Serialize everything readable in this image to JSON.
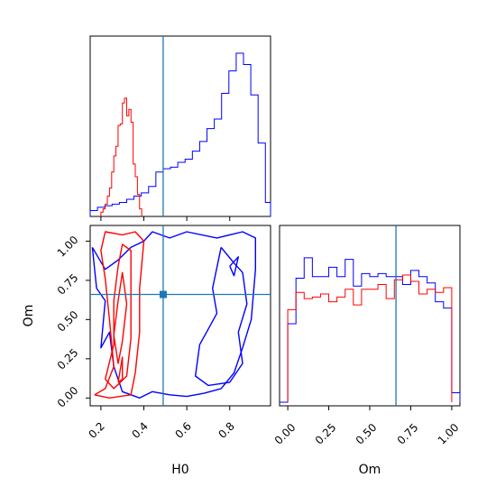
{
  "colors": {
    "series_a": "#0000ff",
    "series_b": "#ff0000",
    "truth": "#1f77b4",
    "frame": "#000000"
  },
  "chart_data": [
    {
      "type": "histogram",
      "panel": "H0 marginal",
      "xlim": [
        0.15,
        0.99
      ],
      "x_tick_labels": [
        "0.2",
        "0.4",
        "0.6",
        "0.8"
      ],
      "truth_x": 0.49,
      "series": [
        {
          "color": "#0000ff",
          "bin_edges": [
            0.15,
            0.184,
            0.218,
            0.252,
            0.286,
            0.32,
            0.354,
            0.388,
            0.422,
            0.456,
            0.49,
            0.524,
            0.558,
            0.592,
            0.626,
            0.66,
            0.694,
            0.728,
            0.762,
            0.796,
            0.83,
            0.864,
            0.898,
            0.932,
            0.966,
            0.99
          ],
          "counts": [
            0.02,
            0.04,
            0.05,
            0.06,
            0.07,
            0.09,
            0.11,
            0.13,
            0.17,
            0.26,
            0.28,
            0.29,
            0.32,
            0.34,
            0.39,
            0.45,
            0.53,
            0.59,
            0.75,
            0.89,
            1.0,
            0.93,
            0.74,
            0.44,
            0.07
          ]
        },
        {
          "color": "#ff0000",
          "bin_edges": [
            0.2,
            0.21,
            0.22,
            0.23,
            0.24,
            0.25,
            0.26,
            0.27,
            0.28,
            0.29,
            0.3,
            0.31,
            0.32,
            0.33,
            0.34,
            0.35,
            0.36,
            0.37,
            0.38,
            0.39
          ],
          "counts": [
            0.01,
            0.03,
            0.06,
            0.11,
            0.16,
            0.26,
            0.36,
            0.42,
            0.55,
            0.56,
            0.69,
            0.72,
            0.61,
            0.65,
            0.57,
            0.31,
            0.23,
            0.12,
            0.03
          ]
        }
      ]
    },
    {
      "type": "histogram",
      "panel": "Om marginal",
      "xlim": [
        -0.05,
        1.05
      ],
      "x_tick_labels": [
        "0.00",
        "0.25",
        "0.50",
        "0.75",
        "1.00"
      ],
      "xlabel": "Om",
      "truth_x": 0.66,
      "series": [
        {
          "color": "#0000ff",
          "bin_edges": [
            -0.05,
            0.0,
            0.05,
            0.1,
            0.15,
            0.2,
            0.25,
            0.3,
            0.35,
            0.4,
            0.45,
            0.5,
            0.55,
            0.6,
            0.65,
            0.7,
            0.75,
            0.8,
            0.85,
            0.9,
            0.95,
            1.0,
            1.05
          ],
          "counts": [
            0.0,
            0.5,
            0.79,
            0.92,
            0.8,
            0.8,
            0.86,
            0.8,
            0.91,
            0.74,
            0.82,
            0.8,
            0.82,
            0.8,
            0.8,
            0.75,
            0.84,
            0.8,
            0.76,
            0.64,
            0.6,
            0.06
          ]
        },
        {
          "color": "#ff0000",
          "bin_edges": [
            0.0,
            0.05,
            0.1,
            0.15,
            0.2,
            0.25,
            0.3,
            0.35,
            0.4,
            0.45,
            0.5,
            0.55,
            0.6,
            0.65,
            0.7,
            0.75,
            0.8,
            0.85,
            0.9,
            0.95,
            1.0
          ],
          "counts": [
            0.59,
            0.7,
            0.66,
            0.67,
            0.69,
            0.64,
            0.67,
            0.72,
            0.62,
            0.72,
            0.72,
            0.75,
            0.66,
            0.78,
            0.81,
            0.77,
            0.69,
            0.72,
            0.7,
            0.73
          ]
        }
      ]
    },
    {
      "type": "contour",
      "panel": "H0 vs Om joint",
      "xlabel": "H0",
      "ylabel": "Om",
      "xlim": [
        0.15,
        0.99
      ],
      "ylim": [
        -0.05,
        1.1
      ],
      "x_tick_labels": [
        "0.2",
        "0.4",
        "0.6",
        "0.8"
      ],
      "y_tick_labels": [
        "0.00",
        "0.25",
        "0.50",
        "0.75",
        "1.00"
      ],
      "truth_point": [
        0.49,
        0.66
      ],
      "series": [
        {
          "color": "#0000ff",
          "levels": [
            [
              [
                0.16,
                0.96
              ],
              [
                0.22,
                0.82
              ],
              [
                0.28,
                0.88
              ],
              [
                0.34,
                0.96
              ],
              [
                0.4,
                1.0
              ],
              [
                0.44,
                1.06
              ],
              [
                0.52,
                1.02
              ],
              [
                0.6,
                1.06
              ],
              [
                0.74,
                1.02
              ],
              [
                0.86,
                1.06
              ],
              [
                0.92,
                1.02
              ],
              [
                0.92,
                0.82
              ],
              [
                0.9,
                0.5
              ],
              [
                0.86,
                0.32
              ],
              [
                0.82,
                0.16
              ],
              [
                0.76,
                0.06
              ],
              [
                0.68,
                0.03
              ],
              [
                0.6,
                0.01
              ],
              [
                0.52,
                0.02
              ],
              [
                0.44,
                0.04
              ],
              [
                0.38,
                0.0
              ],
              [
                0.3,
                0.04
              ],
              [
                0.26,
                0.2
              ],
              [
                0.24,
                0.42
              ],
              [
                0.2,
                0.32
              ],
              [
                0.22,
                0.62
              ],
              [
                0.18,
                0.7
              ],
              [
                0.16,
                0.96
              ]
            ],
            [
              [
                0.76,
                0.96
              ],
              [
                0.82,
                0.86
              ],
              [
                0.86,
                0.8
              ],
              [
                0.88,
                0.6
              ],
              [
                0.84,
                0.42
              ],
              [
                0.86,
                0.22
              ],
              [
                0.8,
                0.1
              ],
              [
                0.7,
                0.08
              ],
              [
                0.64,
                0.14
              ],
              [
                0.66,
                0.34
              ],
              [
                0.7,
                0.44
              ],
              [
                0.74,
                0.54
              ],
              [
                0.72,
                0.7
              ],
              [
                0.76,
                0.96
              ]
            ],
            [
              [
                0.8,
                0.84
              ],
              [
                0.84,
                0.9
              ],
              [
                0.82,
                0.78
              ],
              [
                0.8,
                0.84
              ]
            ]
          ]
        },
        {
          "color": "#ff0000",
          "levels": [
            [
              [
                0.17,
                0.02
              ],
              [
                0.22,
                0.06
              ],
              [
                0.26,
                0.2
              ],
              [
                0.24,
                0.5
              ],
              [
                0.22,
                0.76
              ],
              [
                0.2,
                0.94
              ],
              [
                0.22,
                1.06
              ],
              [
                0.3,
                1.04
              ],
              [
                0.36,
                1.06
              ],
              [
                0.4,
                1.0
              ],
              [
                0.38,
                0.7
              ],
              [
                0.38,
                0.42
              ],
              [
                0.36,
                0.16
              ],
              [
                0.34,
                0.02
              ],
              [
                0.24,
                0.0
              ],
              [
                0.17,
                0.02
              ]
            ],
            [
              [
                0.22,
                0.12
              ],
              [
                0.26,
                0.34
              ],
              [
                0.26,
                0.62
              ],
              [
                0.28,
                0.84
              ],
              [
                0.3,
                0.98
              ],
              [
                0.34,
                0.94
              ],
              [
                0.34,
                0.66
              ],
              [
                0.34,
                0.38
              ],
              [
                0.32,
                0.14
              ],
              [
                0.26,
                0.06
              ],
              [
                0.22,
                0.12
              ]
            ],
            [
              [
                0.26,
                0.4
              ],
              [
                0.28,
                0.62
              ],
              [
                0.3,
                0.8
              ],
              [
                0.32,
                0.6
              ],
              [
                0.3,
                0.36
              ],
              [
                0.28,
                0.22
              ],
              [
                0.26,
                0.4
              ]
            ],
            [
              [
                0.28,
                0.1
              ],
              [
                0.3,
                0.26
              ],
              [
                0.3,
                0.12
              ],
              [
                0.28,
                0.1
              ]
            ]
          ]
        }
      ]
    }
  ]
}
